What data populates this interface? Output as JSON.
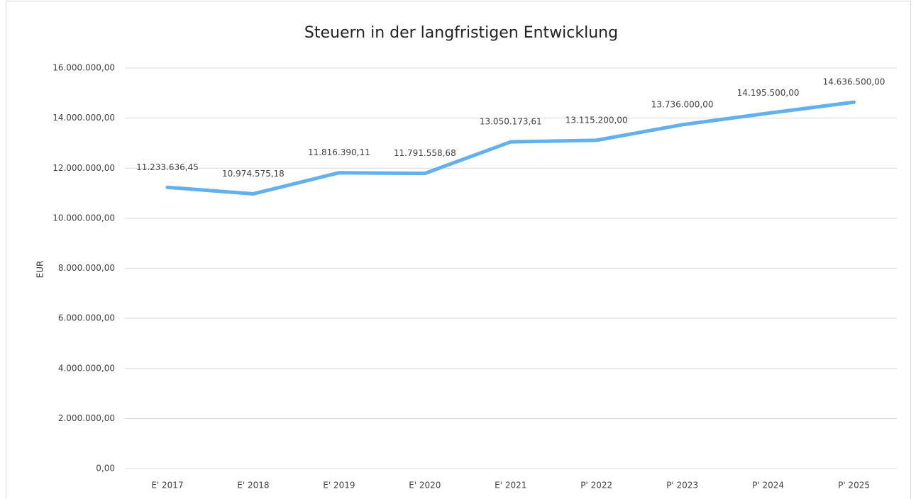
{
  "chart_data": {
    "type": "line",
    "title": "Steuern in der langfristigen Entwicklung",
    "y_label": "EUR",
    "categories": [
      "E' 2017",
      "E' 2018",
      "E' 2019",
      "E' 2020",
      "E' 2021",
      "P' 2022",
      "P' 2023",
      "P' 2024",
      "P' 2025"
    ],
    "series": [
      {
        "color": "#62b0ee",
        "values": [
          11233636.45,
          10974575.18,
          11816390.11,
          11791558.68,
          13050173.61,
          13115200,
          13736000,
          14195500,
          14636500
        ],
        "value_labels": [
          "11.233.636,45",
          "10.974.575,18",
          "11.816.390,11",
          "11.791.558,68",
          "13.050.173,61",
          "13.115.200,00",
          "13.736.000,00",
          "14.195.500,00",
          "14.636.500,00"
        ]
      }
    ],
    "ylim": [
      0,
      16000000
    ],
    "yticks": [
      {
        "value": 0,
        "label": "0,00"
      },
      {
        "value": 2000000,
        "label": "2.000.000,00"
      },
      {
        "value": 4000000,
        "label": "4.000.000,00"
      },
      {
        "value": 6000000,
        "label": "6.000.000,00"
      },
      {
        "value": 8000000,
        "label": "8.000.000,00"
      },
      {
        "value": 10000000,
        "label": "10.000.000,00"
      },
      {
        "value": 12000000,
        "label": "12.000.000,00"
      },
      {
        "value": 14000000,
        "label": "14.000.000,00"
      },
      {
        "value": 16000000,
        "label": "16.000.000,00"
      }
    ],
    "grid": true
  }
}
